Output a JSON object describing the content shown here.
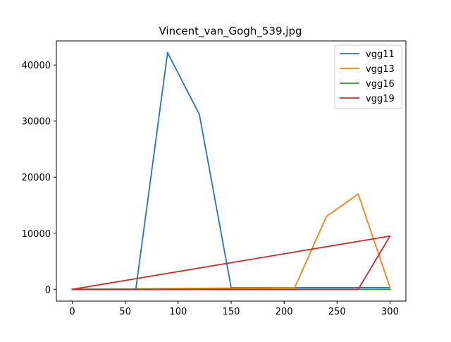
{
  "chart_data": {
    "type": "line",
    "title": "Vincent_van_Gogh_539.jpg",
    "xlabel": "",
    "ylabel": "",
    "xlim": [
      -15,
      315
    ],
    "ylim": [
      -2100,
      44300
    ],
    "xticks": [
      0,
      50,
      100,
      150,
      200,
      250,
      300
    ],
    "yticks": [
      0,
      10000,
      20000,
      30000,
      40000
    ],
    "grid": false,
    "legend_position": "top-right",
    "series": [
      {
        "name": "vgg11",
        "color": "#1f77b4",
        "points": [
          [
            0,
            0
          ],
          [
            60,
            0
          ],
          [
            90,
            42200
          ],
          [
            120,
            31200
          ],
          [
            150,
            300
          ],
          [
            300,
            300
          ]
        ]
      },
      {
        "name": "vgg13",
        "color": "#ff7f0e",
        "points": [
          [
            0,
            0
          ],
          [
            210,
            300
          ],
          [
            240,
            13000
          ],
          [
            270,
            17000
          ],
          [
            300,
            300
          ]
        ]
      },
      {
        "name": "vgg16",
        "color": "#2ca02c",
        "points": [
          [
            0,
            0
          ],
          [
            300,
            0
          ]
        ]
      },
      {
        "name": "vgg19",
        "color": "#d62728",
        "points": [
          [
            0,
            0
          ],
          [
            270,
            0
          ],
          [
            300,
            9500
          ],
          [
            0,
            0
          ]
        ]
      }
    ]
  }
}
